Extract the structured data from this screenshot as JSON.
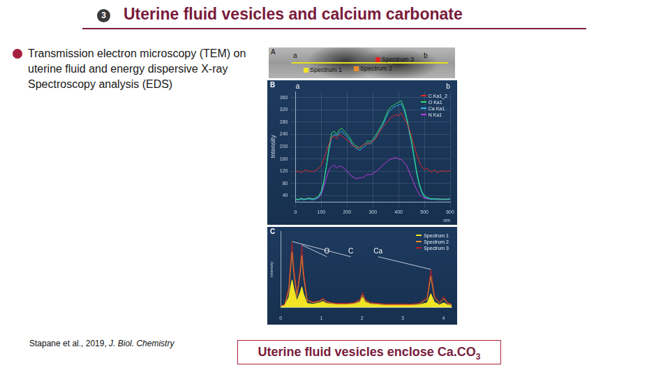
{
  "slide": {
    "badge": "3",
    "title": "Uterine fluid vesicles and calcium carbonate",
    "bullet": "Transmission electron microscopy (TEM) on uterine fluid and energy dispersive X-ray Spectroscopy  analysis (EDS)",
    "citation": {
      "authors": "Stapane et al., 2019, ",
      "journal": "J. Biol. Chemistry"
    },
    "conclusion": {
      "text": "Uterine fluid vesicles enclose Ca.CO",
      "subscript": "3"
    }
  },
  "panel_a": {
    "panel_label": "A",
    "end_labels": [
      "a",
      "b"
    ],
    "markers": [
      {
        "name": "Spectrum 3",
        "color": "#e02424"
      },
      {
        "name": "Spectrum 1",
        "color": "#f2e424"
      },
      {
        "name": "Spectrum 2",
        "color": "#f08a2a"
      }
    ]
  },
  "chart_data": [
    {
      "type": "line",
      "panel_label": "B",
      "end_labels": [
        "a",
        "b"
      ],
      "x_label": "nm",
      "y_label": "Intensity",
      "x": [
        0,
        10,
        20,
        30,
        40,
        50,
        60,
        70,
        80,
        90,
        100,
        110,
        120,
        130,
        140,
        150,
        160,
        170,
        180,
        190,
        200,
        210,
        220,
        230,
        240,
        250,
        260,
        270,
        280,
        290,
        300,
        310,
        320,
        330,
        340,
        350,
        360,
        370,
        380,
        390,
        400,
        410,
        420,
        430,
        440,
        450,
        460,
        470,
        480,
        490,
        500,
        510,
        520,
        530,
        540,
        550,
        560,
        570,
        580,
        590,
        600
      ],
      "xlim": [
        0,
        600
      ],
      "xticks": [
        0,
        100,
        200,
        300,
        400,
        500,
        600
      ],
      "ylim": [
        20,
        380
      ],
      "yticks": [
        40,
        80,
        120,
        160,
        200,
        240,
        280,
        320,
        360
      ],
      "grid": true,
      "legend": "top-right",
      "series": [
        {
          "name": "C Ka1_2",
          "color": "#e0262a",
          "values": [
            118,
            122,
            115,
            120,
            125,
            118,
            121,
            119,
            124,
            130,
            140,
            160,
            185,
            210,
            230,
            235,
            225,
            240,
            235,
            228,
            222,
            215,
            205,
            200,
            195,
            198,
            205,
            210,
            208,
            212,
            218,
            225,
            240,
            255,
            265,
            275,
            285,
            295,
            300,
            305,
            300,
            310,
            295,
            280,
            260,
            235,
            205,
            175,
            150,
            135,
            125,
            130,
            120,
            118,
            125,
            115,
            120,
            122,
            118,
            121,
            120
          ]
        },
        {
          "name": "O Ka1",
          "color": "#2ee06a",
          "values": [
            30,
            28,
            32,
            30,
            29,
            33,
            31,
            30,
            34,
            40,
            55,
            90,
            140,
            200,
            245,
            250,
            240,
            255,
            260,
            250,
            240,
            230,
            215,
            205,
            200,
            195,
            205,
            210,
            220,
            215,
            225,
            235,
            250,
            265,
            280,
            300,
            320,
            330,
            335,
            340,
            345,
            350,
            330,
            300,
            260,
            220,
            170,
            120,
            80,
            55,
            40,
            35,
            32,
            30,
            31,
            29,
            30,
            28,
            30,
            29,
            30
          ]
        },
        {
          "name": "Ca Ka1",
          "color": "#33b8f0",
          "values": [
            28,
            26,
            29,
            27,
            28,
            30,
            28,
            27,
            30,
            36,
            50,
            85,
            135,
            190,
            230,
            240,
            235,
            245,
            250,
            240,
            232,
            222,
            208,
            198,
            192,
            188,
            196,
            202,
            212,
            208,
            218,
            228,
            242,
            258,
            272,
            292,
            310,
            320,
            328,
            332,
            336,
            340,
            322,
            292,
            252,
            212,
            162,
            112,
            74,
            50,
            36,
            32,
            30,
            28,
            29,
            27,
            28,
            27,
            28,
            27,
            28
          ]
        },
        {
          "name": "N Ka1",
          "color": "#c23ae0",
          "values": [
            30,
            28,
            31,
            29,
            30,
            32,
            30,
            29,
            31,
            34,
            45,
            70,
            100,
            125,
            135,
            140,
            130,
            138,
            135,
            128,
            120,
            110,
            102,
            98,
            95,
            100,
            98,
            105,
            110,
            108,
            112,
            118,
            125,
            132,
            140,
            148,
            155,
            160,
            162,
            165,
            160,
            158,
            150,
            140,
            120,
            100,
            80,
            60,
            45,
            38,
            32,
            30,
            29,
            30,
            28,
            31,
            29,
            30,
            28,
            30,
            30
          ]
        }
      ]
    },
    {
      "type": "line",
      "panel_label": "C",
      "y_label": "Intensity",
      "x": [
        0,
        0.1,
        0.2,
        0.25,
        0.28,
        0.32,
        0.4,
        0.48,
        0.52,
        0.56,
        0.65,
        0.8,
        0.95,
        1.04,
        1.12,
        1.25,
        1.4,
        1.6,
        1.8,
        1.95,
        2.01,
        2.08,
        2.2,
        2.4,
        2.6,
        2.8,
        3.0,
        3.2,
        3.4,
        3.6,
        3.69,
        3.78,
        3.9,
        4.01,
        4.1,
        4.2
      ],
      "xlim": [
        0,
        4.2
      ],
      "xticks": [
        0,
        1,
        2,
        3,
        4
      ],
      "ylim": [
        0,
        110
      ],
      "tick_labels": "x",
      "grid": false,
      "legend": "top-right",
      "annotations": [
        {
          "text": "O",
          "x": 0.52
        },
        {
          "text": "C",
          "x": 0.28
        },
        {
          "text": "Ca",
          "x": 3.69
        }
      ],
      "series": [
        {
          "name": "Spectrum 1",
          "color": "#f2e424",
          "type": "area",
          "values": [
            1,
            3,
            15,
            32,
            40,
            28,
            10,
            22,
            30,
            20,
            6,
            5,
            7,
            9,
            6,
            5,
            4,
            4,
            5,
            8,
            15,
            8,
            5,
            4,
            3,
            3,
            3,
            3,
            4,
            7,
            20,
            8,
            4,
            7,
            4,
            3
          ]
        },
        {
          "name": "Spectrum 2",
          "color": "#f08a2a",
          "type": "line",
          "values": [
            2,
            4,
            25,
            60,
            80,
            50,
            16,
            50,
            75,
            45,
            10,
            7,
            9,
            12,
            8,
            6,
            5,
            5,
            6,
            10,
            18,
            10,
            6,
            5,
            4,
            4,
            4,
            4,
            5,
            12,
            45,
            14,
            6,
            13,
            6,
            4
          ]
        },
        {
          "name": "Spectrum 3",
          "color": "#c0202a",
          "type": "line",
          "values": [
            2,
            5,
            30,
            75,
            95,
            60,
            20,
            60,
            90,
            55,
            12,
            8,
            10,
            14,
            9,
            7,
            6,
            6,
            7,
            12,
            22,
            12,
            7,
            6,
            5,
            5,
            5,
            5,
            6,
            15,
            55,
            18,
            8,
            16,
            7,
            5
          ]
        }
      ]
    }
  ]
}
